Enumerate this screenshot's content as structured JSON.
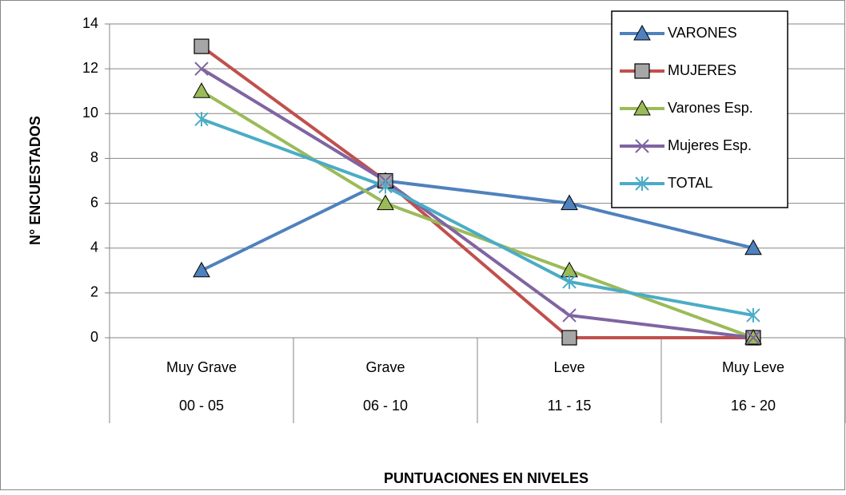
{
  "chart_data": {
    "type": "line",
    "y_axis_label": "N° ENCUESTADOS",
    "x_axis_label": "PUNTUACIONES EN NIVELES",
    "categories": [
      "Muy Grave",
      "Grave",
      "Leve",
      "Muy Leve"
    ],
    "category_ranges": [
      "00 - 05",
      "06 - 10",
      "11 - 15",
      "16 - 20"
    ],
    "series": [
      {
        "name": "VARONES",
        "color": "#4f81bd",
        "marker": "triangle",
        "values": [
          3,
          7,
          6,
          4
        ]
      },
      {
        "name": "MUJERES",
        "color": "#c0504d",
        "marker": "square",
        "values": [
          13,
          7,
          0,
          0
        ]
      },
      {
        "name": "Varones Esp.",
        "color": "#9bbb59",
        "marker": "triangle",
        "values": [
          11,
          6,
          3,
          0
        ]
      },
      {
        "name": "Mujeres Esp.",
        "color": "#8064a2",
        "marker": "x",
        "values": [
          12,
          7,
          1,
          0
        ]
      },
      {
        "name": "TOTAL",
        "color": "#4bacc6",
        "marker": "asterisk",
        "values": [
          9.75,
          6.75,
          2.5,
          1
        ]
      }
    ],
    "ylim": [
      0,
      14
    ],
    "yticks": [
      0,
      2,
      4,
      6,
      8,
      10,
      12,
      14
    ],
    "grid": true,
    "legend": "top-right"
  }
}
